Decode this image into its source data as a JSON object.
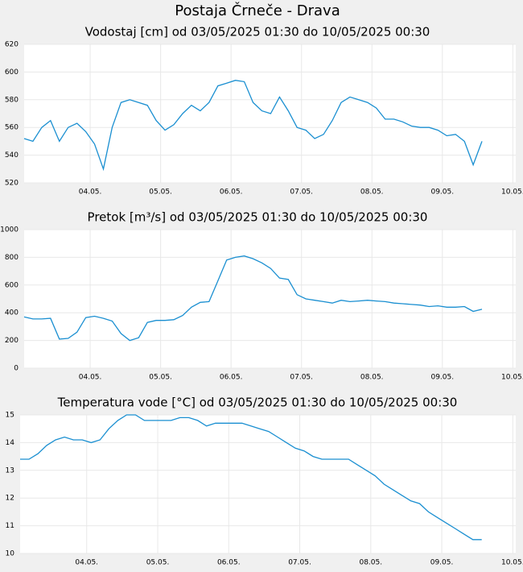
{
  "title": "Postaja Črneče - Drava",
  "chart_data": [
    {
      "type": "line",
      "title": "Vodostaj [cm] od 03/05/2025 01:30 do 10/05/2025 00:30",
      "color": "#1a8fd1",
      "grid": true,
      "x": [
        3.0625,
        3.1875,
        3.3125,
        3.4375,
        3.5625,
        3.6875,
        3.8125,
        3.9375,
        4.0625,
        4.1875,
        4.3125,
        4.4375,
        4.5625,
        4.6875,
        4.8125,
        4.9375,
        5.0625,
        5.1875,
        5.3125,
        5.4375,
        5.5625,
        5.6875,
        5.8125,
        5.9375,
        6.0625,
        6.1875,
        6.3125,
        6.4375,
        6.5625,
        6.6875,
        6.8125,
        6.9375,
        7.0625,
        7.1875,
        7.3125,
        7.4375,
        7.5625,
        7.6875,
        7.8125,
        7.9375,
        8.0625,
        8.1875,
        8.3125,
        8.4375,
        8.5625,
        8.6875,
        8.8125,
        8.9375,
        9.0625,
        9.1875,
        9.3125,
        9.4375,
        9.5625
      ],
      "values": [
        552,
        550,
        560,
        565,
        550,
        560,
        563,
        557,
        548,
        530,
        560,
        578,
        580,
        578,
        576,
        565,
        558,
        562,
        570,
        576,
        572,
        578,
        590,
        592,
        594,
        593,
        578,
        572,
        570,
        582,
        572,
        560,
        558,
        552,
        555,
        565,
        578,
        582,
        580,
        578,
        574,
        566,
        566,
        564,
        561,
        560,
        560,
        558,
        554,
        555,
        550,
        533,
        550
      ],
      "xlim": [
        3.0625,
        10.0417
      ],
      "xticks": [
        {
          "value": 4,
          "label": "04.05."
        },
        {
          "value": 5,
          "label": "05.05."
        },
        {
          "value": 6,
          "label": "06.05."
        },
        {
          "value": 7,
          "label": "07.05."
        },
        {
          "value": 8,
          "label": "08.05."
        },
        {
          "value": 9,
          "label": "09.05."
        },
        {
          "value": 10,
          "label": "10.05."
        }
      ],
      "ylim": [
        520,
        620
      ],
      "yticks": [
        520,
        540,
        560,
        580,
        600,
        620
      ]
    },
    {
      "type": "line",
      "title": "Pretok [m³/s] od 03/05/2025 01:30 do 10/05/2025 00:30",
      "color": "#1a8fd1",
      "grid": true,
      "x": [
        3.0625,
        3.1875,
        3.3125,
        3.4375,
        3.5625,
        3.6875,
        3.8125,
        3.9375,
        4.0625,
        4.1875,
        4.3125,
        4.4375,
        4.5625,
        4.6875,
        4.8125,
        4.9375,
        5.0625,
        5.1875,
        5.3125,
        5.4375,
        5.5625,
        5.6875,
        5.8125,
        5.9375,
        6.0625,
        6.1875,
        6.3125,
        6.4375,
        6.5625,
        6.6875,
        6.8125,
        6.9375,
        7.0625,
        7.1875,
        7.3125,
        7.4375,
        7.5625,
        7.6875,
        7.8125,
        7.9375,
        8.0625,
        8.1875,
        8.3125,
        8.4375,
        8.5625,
        8.6875,
        8.8125,
        8.9375,
        9.0625,
        9.1875,
        9.3125,
        9.4375,
        9.5625
      ],
      "values": [
        370,
        355,
        355,
        360,
        210,
        215,
        260,
        365,
        375,
        360,
        340,
        250,
        200,
        220,
        330,
        345,
        345,
        350,
        380,
        440,
        475,
        480,
        630,
        780,
        800,
        810,
        790,
        760,
        720,
        650,
        640,
        530,
        500,
        490,
        480,
        470,
        490,
        480,
        485,
        490,
        485,
        480,
        470,
        465,
        460,
        455,
        445,
        450,
        440,
        440,
        445,
        410,
        425
      ],
      "xlim": [
        3.0625,
        10.0417
      ],
      "xticks": [
        {
          "value": 4,
          "label": "04.05."
        },
        {
          "value": 5,
          "label": "05.05."
        },
        {
          "value": 6,
          "label": "06.05."
        },
        {
          "value": 7,
          "label": "07.05."
        },
        {
          "value": 8,
          "label": "08.05."
        },
        {
          "value": 9,
          "label": "09.05."
        },
        {
          "value": 10,
          "label": "10.05."
        }
      ],
      "ylim": [
        0,
        1000
      ],
      "yticks": [
        0,
        200,
        400,
        600,
        800,
        1000
      ]
    },
    {
      "type": "line",
      "title": "Temperatura vode [°C] od 03/05/2025 01:30 do 10/05/2025 00:30",
      "color": "#1a8fd1",
      "grid": true,
      "x": [
        3.0625,
        3.1875,
        3.3125,
        3.4375,
        3.5625,
        3.6875,
        3.8125,
        3.9375,
        4.0625,
        4.1875,
        4.3125,
        4.4375,
        4.5625,
        4.6875,
        4.8125,
        4.9375,
        5.0625,
        5.1875,
        5.3125,
        5.4375,
        5.5625,
        5.6875,
        5.8125,
        5.9375,
        6.0625,
        6.1875,
        6.3125,
        6.4375,
        6.5625,
        6.6875,
        6.8125,
        6.9375,
        7.0625,
        7.1875,
        7.3125,
        7.4375,
        7.5625,
        7.6875,
        7.8125,
        7.9375,
        8.0625,
        8.1875,
        8.3125,
        8.4375,
        8.5625,
        8.6875,
        8.8125,
        8.9375,
        9.0625,
        9.1875,
        9.3125,
        9.4375,
        9.5625
      ],
      "values": [
        13.4,
        13.4,
        13.6,
        13.9,
        14.1,
        14.2,
        14.1,
        14.1,
        14.0,
        14.1,
        14.5,
        14.8,
        15.0,
        15.0,
        14.8,
        14.8,
        14.8,
        14.8,
        14.9,
        14.9,
        14.8,
        14.6,
        14.7,
        14.7,
        14.7,
        14.7,
        14.6,
        14.5,
        14.4,
        14.2,
        14.0,
        13.8,
        13.7,
        13.5,
        13.4,
        13.4,
        13.4,
        13.4,
        13.2,
        13.0,
        12.8,
        12.5,
        12.3,
        12.1,
        11.9,
        11.8,
        11.5,
        11.3,
        11.1,
        10.9,
        10.7,
        10.5,
        10.5
      ],
      "xlim": [
        3.0625,
        10.0417
      ],
      "xticks": [
        {
          "value": 4,
          "label": "04.05."
        },
        {
          "value": 5,
          "label": "05.05."
        },
        {
          "value": 6,
          "label": "06.05."
        },
        {
          "value": 7,
          "label": "07.05."
        },
        {
          "value": 8,
          "label": "08.05."
        },
        {
          "value": 9,
          "label": "09.05."
        },
        {
          "value": 10,
          "label": "10.05."
        }
      ],
      "ylim": [
        10,
        15
      ],
      "yticks": [
        10,
        11,
        12,
        13,
        14,
        15
      ]
    }
  ]
}
